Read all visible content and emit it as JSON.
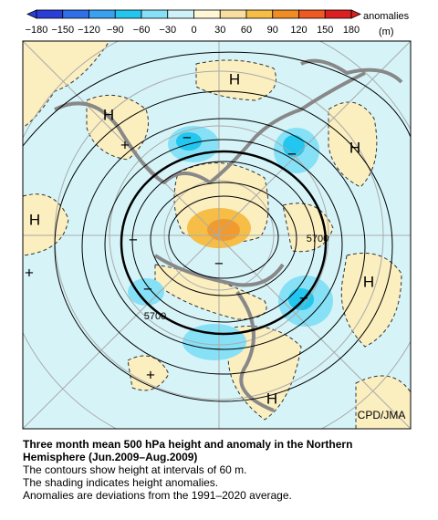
{
  "colorbar": {
    "ticks": [
      "−180",
      "−150",
      "−120",
      "−90",
      "−60",
      "−30",
      "0",
      "30",
      "60",
      "90",
      "120",
      "150",
      "180"
    ],
    "colors": [
      "#2a3fd8",
      "#2f6fe8",
      "#3aa0f0",
      "#22c6ee",
      "#86e0f6",
      "#cdf3f8",
      "#fff6d6",
      "#f8dfa0",
      "#f6be46",
      "#f08c24",
      "#ee5a22",
      "#dc2020"
    ],
    "title": "anomalies",
    "unit": "(m)"
  },
  "map": {
    "labels": [
      "H",
      "H",
      "H",
      "H",
      "H",
      "H",
      "+",
      "+",
      "+",
      "−",
      "−",
      "−",
      "−",
      "−",
      "−",
      "5700",
      "5700"
    ],
    "credit": "CPD/JMA"
  },
  "caption": {
    "title": [
      "Three month mean 500 hPa height and anomaly in the Northern",
      "Hemisphere (Jun.2009–Aug.2009)"
    ],
    "lines": [
      "The contours show height at intervals of 60 m.",
      "The shading indicates height anomalies.",
      "Anomalies are deviations from the 1991–2020 average."
    ]
  }
}
